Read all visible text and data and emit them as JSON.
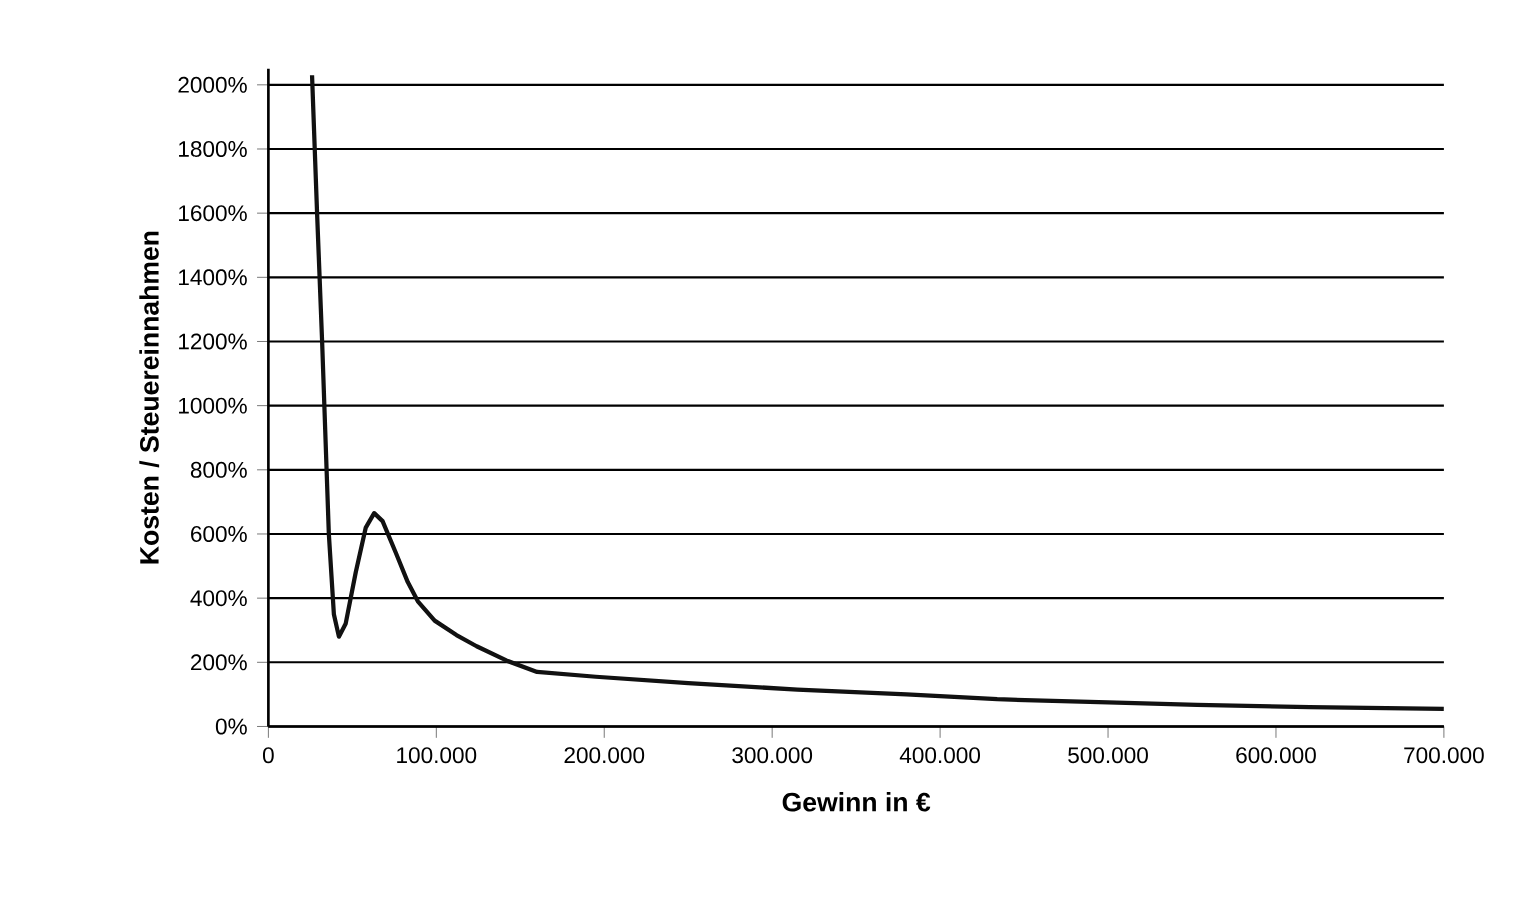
{
  "chart_data": {
    "type": "line",
    "xlabel": "Gewinn in €",
    "ylabel": "Kosten / Steuereinnahmen",
    "x": [
      26000,
      29000,
      32000,
      36000,
      39000,
      42000,
      46000,
      52000,
      58000,
      63000,
      68000,
      76000,
      83000,
      89000,
      99000,
      112000,
      124000,
      142000,
      160000,
      195000,
      250000,
      315000,
      380000,
      434000,
      500000,
      553000,
      620000,
      700000
    ],
    "series": [
      {
        "color": "#111111",
        "values": [
          2030,
          1600,
          1200,
          600,
          350,
          280,
          320,
          480,
          620,
          665,
          640,
          540,
          450,
          390,
          330,
          285,
          250,
          205,
          170,
          155,
          135,
          115,
          100,
          85,
          75,
          67,
          60,
          55
        ]
      }
    ],
    "xlim": [
      0,
      700000
    ],
    "ylim": [
      0,
      2050
    ],
    "xticks": [
      {
        "value": 0,
        "label": "0"
      },
      {
        "value": 100000,
        "label": "100.000"
      },
      {
        "value": 200000,
        "label": "200.000"
      },
      {
        "value": 300000,
        "label": "300.000"
      },
      {
        "value": 400000,
        "label": "400.000"
      },
      {
        "value": 500000,
        "label": "500.000"
      },
      {
        "value": 600000,
        "label": "600.000"
      },
      {
        "value": 700000,
        "label": "700.000"
      }
    ],
    "yticks": [
      {
        "value": 0,
        "label": "0%"
      },
      {
        "value": 200,
        "label": "200%"
      },
      {
        "value": 400,
        "label": "400%"
      },
      {
        "value": 600,
        "label": "600%"
      },
      {
        "value": 800,
        "label": "800%"
      },
      {
        "value": 1000,
        "label": "1000%"
      },
      {
        "value": 1200,
        "label": "1200%"
      },
      {
        "value": 1400,
        "label": "1400%"
      },
      {
        "value": 1600,
        "label": "1600%"
      },
      {
        "value": 1800,
        "label": "1800%"
      },
      {
        "value": 2000,
        "label": "2000%"
      }
    ],
    "grid": "y",
    "marker": "none",
    "line_style": "solid"
  }
}
